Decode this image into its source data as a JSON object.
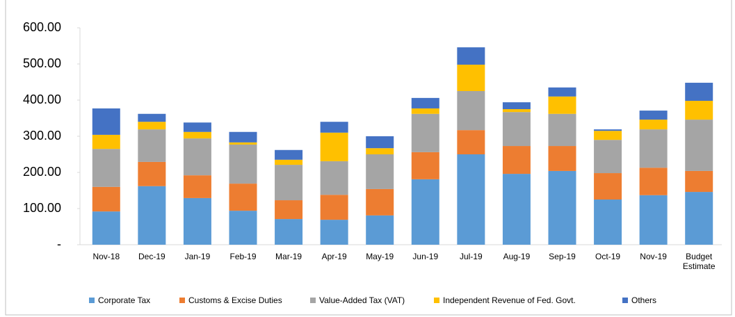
{
  "chart_data": {
    "type": "bar",
    "stacked": true,
    "categories": [
      "Nov-18",
      "Dec-19",
      "Jan-19",
      "Feb-19",
      "Mar-19",
      "Apr-19",
      "May-19",
      "Jun-19",
      "Jul-19",
      "Aug-19",
      "Sep-19",
      "Oct-19",
      "Nov-19",
      "Budget Estimate"
    ],
    "series": [
      {
        "name": "Corporate Tax",
        "color": "#5b9bd5",
        "values": [
          92,
          162,
          129,
          94,
          71,
          69,
          81,
          181,
          250,
          196,
          204,
          125,
          137,
          146
        ]
      },
      {
        "name": "Customs & Excise Duties",
        "color": "#ed7d31",
        "values": [
          68,
          67,
          63,
          75,
          52,
          69,
          73,
          75,
          67,
          77,
          69,
          73,
          76,
          58
        ]
      },
      {
        "name": "Value-Added Tax (VAT)",
        "color": "#a5a5a5",
        "values": [
          105,
          90,
          102,
          108,
          98,
          93,
          96,
          106,
          108,
          94,
          89,
          92,
          106,
          142
        ]
      },
      {
        "name": "Independent Revenue of Fed. Govt.",
        "color": "#ffc000",
        "values": [
          39,
          21,
          18,
          6,
          14,
          79,
          17,
          15,
          73,
          8,
          48,
          25,
          27,
          52
        ]
      },
      {
        "name": "Others",
        "color": "#4472c4",
        "values": [
          73,
          22,
          26,
          29,
          27,
          30,
          33,
          29,
          48,
          19,
          25,
          4,
          25,
          50
        ]
      }
    ],
    "ylim": [
      0,
      600
    ],
    "yticks": [
      {
        "value": 0,
        "label": "-"
      },
      {
        "value": 100,
        "label": "100.00"
      },
      {
        "value": 200,
        "label": "200.00"
      },
      {
        "value": 300,
        "label": "300.00"
      },
      {
        "value": 400,
        "label": "400.00"
      },
      {
        "value": 500,
        "label": "500.00"
      },
      {
        "value": 600,
        "label": "600.00"
      }
    ],
    "legend": "bottom"
  }
}
